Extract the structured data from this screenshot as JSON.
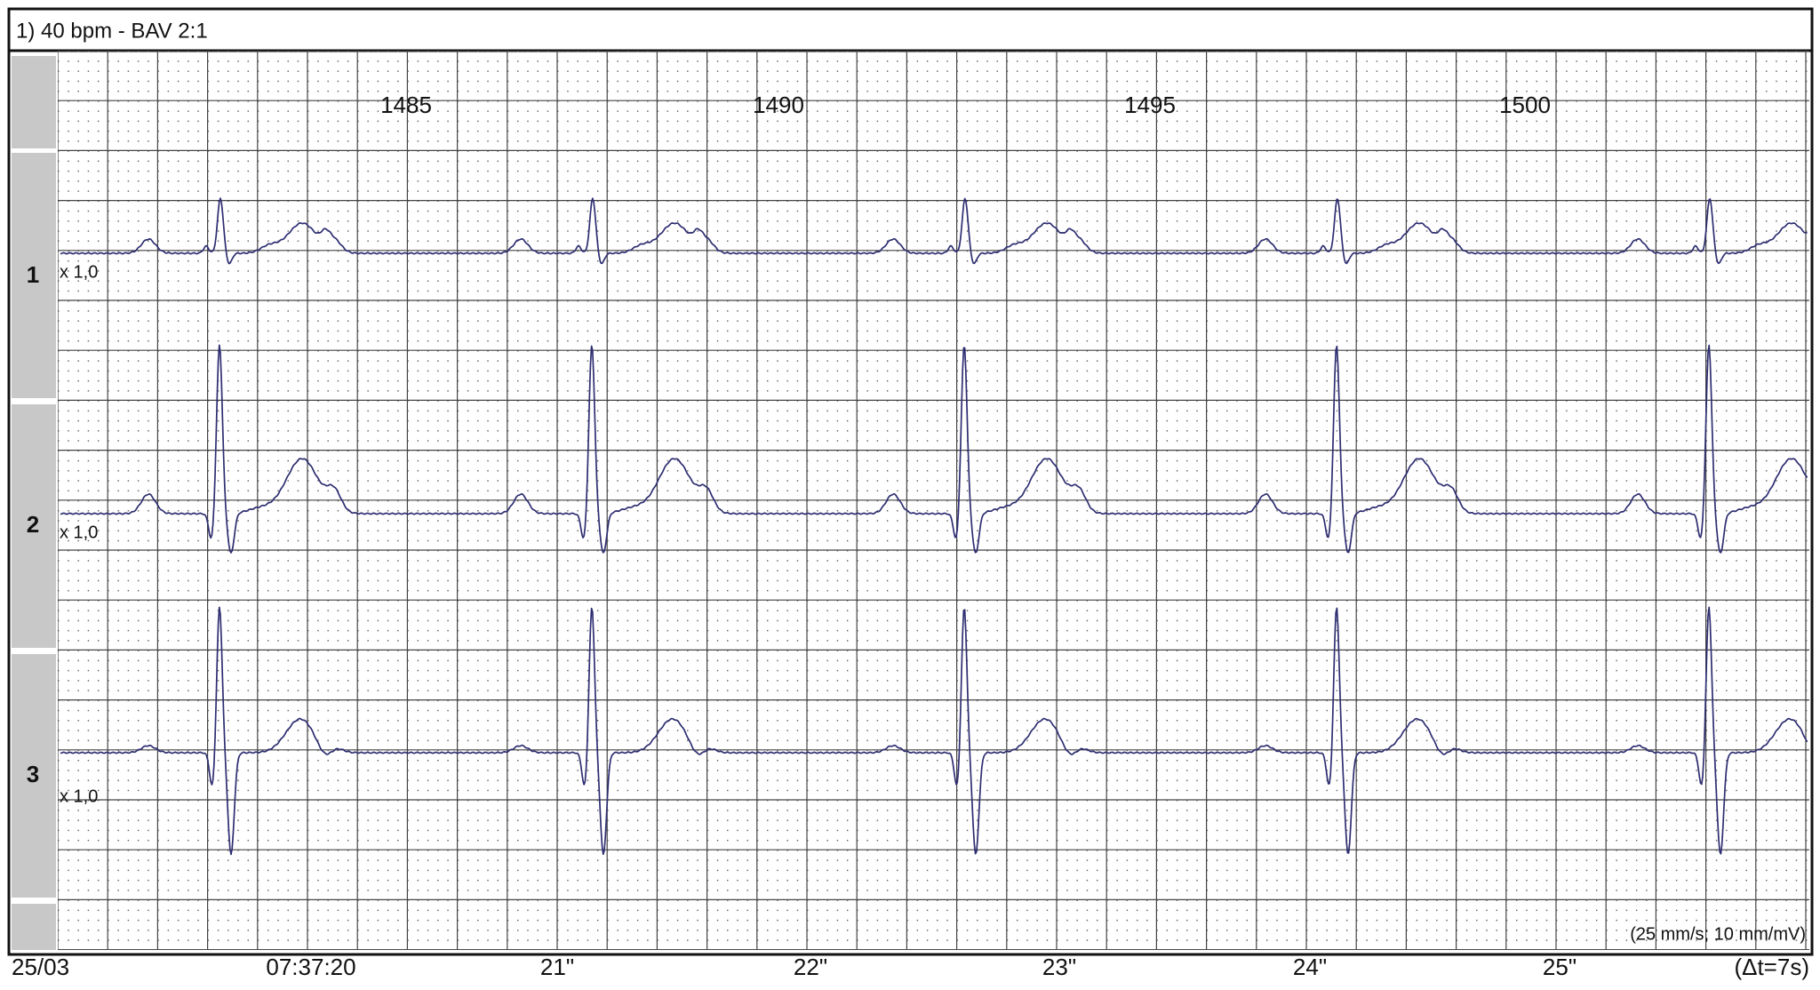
{
  "header": {
    "title": "1) 40 bpm - BAV 2:1"
  },
  "beat_numbers": [
    "1485",
    "1490",
    "1495",
    "1500"
  ],
  "leads": [
    {
      "label": "1",
      "gain": "x 1,0"
    },
    {
      "label": "2",
      "gain": "x 1,0"
    },
    {
      "label": "3",
      "gain": "x 1,0"
    }
  ],
  "settings_label": "(25 mm/s; 10 mm/mV)",
  "footer": {
    "date": "25/03",
    "time_labels": [
      "07:37:20",
      "21\"",
      "22\"",
      "23\"",
      "24\"",
      "25\""
    ],
    "span": "(Δt=7s)"
  }
}
